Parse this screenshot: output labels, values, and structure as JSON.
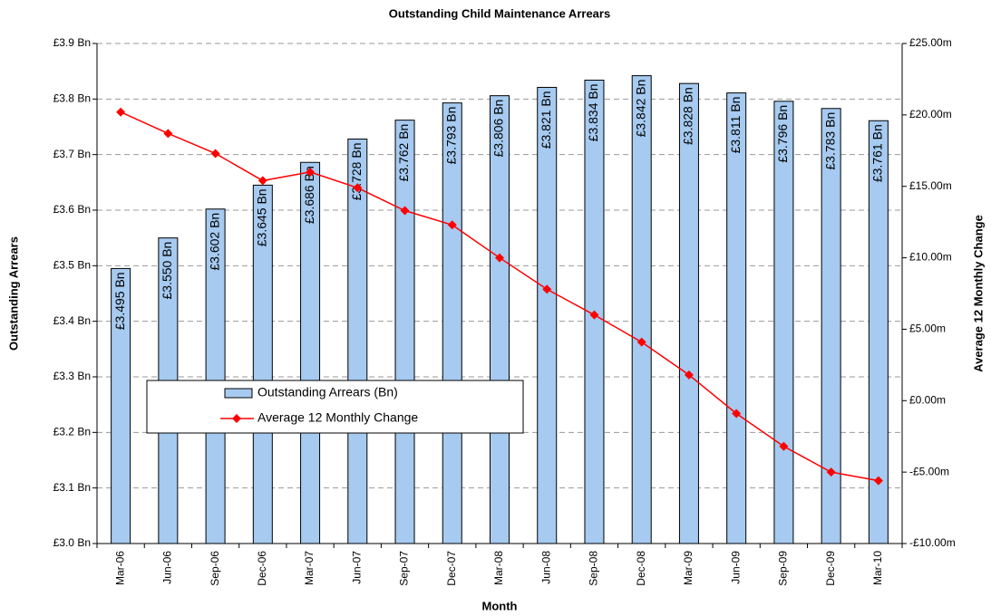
{
  "chart_data": {
    "type": "bar",
    "title": "Outstanding Child Maintenance Arrears",
    "x_label": "Month",
    "y_label": "Outstanding Arrears",
    "y2_label": "Average 12 Monthly Change",
    "categories": [
      "Mar-06",
      "Jun-06",
      "Sep-06",
      "Dec-06",
      "Mar-07",
      "Jun-07",
      "Sep-07",
      "Dec-07",
      "Mar-08",
      "Jun-08",
      "Sep-08",
      "Dec-08",
      "Mar-09",
      "Jun-09",
      "Sep-09",
      "Dec-09",
      "Mar-10"
    ],
    "series": [
      {
        "name": "Outstanding Arrears (Bn)",
        "type": "bar",
        "color": "#a6caf0",
        "values": [
          3.495,
          3.55,
          3.602,
          3.645,
          3.686,
          3.728,
          3.762,
          3.793,
          3.806,
          3.821,
          3.834,
          3.842,
          3.828,
          3.811,
          3.796,
          3.783,
          3.761
        ],
        "value_labels": [
          "£3.495 Bn",
          "£3.550 Bn",
          "£3.602 Bn",
          "£3.645 Bn",
          "£3.686 Bn",
          "£3.728 Bn",
          "£3.762 Bn",
          "£3.793 Bn",
          "£3.806 Bn",
          "£3.821 Bn",
          "£3.834 Bn",
          "£3.842 Bn",
          "£3.828 Bn",
          "£3.811 Bn",
          "£3.796 Bn",
          "£3.783 Bn",
          "£3.761 Bn"
        ]
      },
      {
        "name": "Average 12 Monthly Change",
        "type": "line",
        "axis": "y2",
        "color": "#ff0000",
        "values": [
          20.2,
          18.7,
          17.3,
          15.4,
          16.0,
          14.9,
          13.3,
          12.3,
          10.0,
          7.8,
          6.0,
          4.1,
          1.8,
          -0.9,
          -3.2,
          -5.0,
          -5.6
        ]
      }
    ],
    "ylim": [
      3.0,
      3.9
    ],
    "yticks": [
      {
        "value": 3.0,
        "label": "£3.0 Bn"
      },
      {
        "value": 3.1,
        "label": "£3.1 Bn"
      },
      {
        "value": 3.2,
        "label": "£3.2 Bn"
      },
      {
        "value": 3.3,
        "label": "£3.3 Bn"
      },
      {
        "value": 3.4,
        "label": "£3.4 Bn"
      },
      {
        "value": 3.5,
        "label": "£3.5 Bn"
      },
      {
        "value": 3.6,
        "label": "£3.6 Bn"
      },
      {
        "value": 3.7,
        "label": "£3.7 Bn"
      },
      {
        "value": 3.8,
        "label": "£3.8 Bn"
      },
      {
        "value": 3.9,
        "label": "£3.9 Bn"
      }
    ],
    "y2lim": [
      -10,
      25
    ],
    "y2ticks": [
      {
        "value": -10,
        "label": "-£10.00m"
      },
      {
        "value": -5,
        "label": "-£5.00m"
      },
      {
        "value": 0,
        "label": "£0.00m"
      },
      {
        "value": 5,
        "label": "£5.00m"
      },
      {
        "value": 10,
        "label": "£10.00m"
      },
      {
        "value": 15,
        "label": "£15.00m"
      },
      {
        "value": 20,
        "label": "£20.00m"
      },
      {
        "value": 25,
        "label": "£25.00m"
      }
    ],
    "grid": true
  }
}
